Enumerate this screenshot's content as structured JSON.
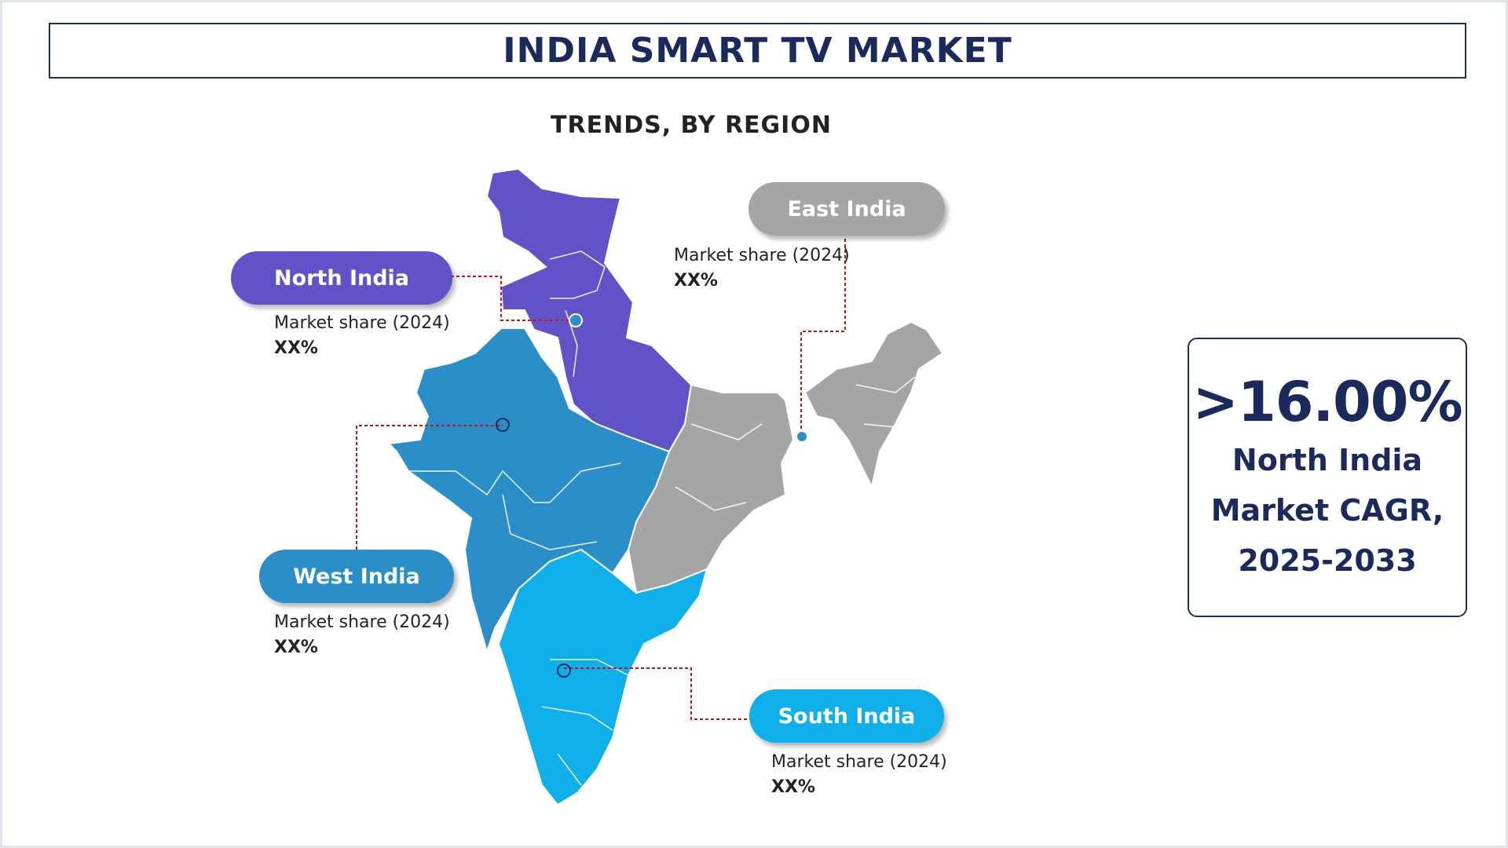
{
  "title": "INDIA SMART TV MARKET",
  "subtitle": "TRENDS, BY REGION",
  "colors": {
    "north": "#6152c8",
    "west": "#2a8fc9",
    "east": "#a5a5a5",
    "south": "#0fb0ea",
    "navy": "#1b2a5c",
    "leader": "#c0121b"
  },
  "regions": {
    "north": {
      "name": "North India",
      "share_label": "Market share (2024)",
      "share_value": "XX%"
    },
    "east": {
      "name": "East India",
      "share_label": "Market share (2024)",
      "share_value": "XX%"
    },
    "west": {
      "name": "West India",
      "share_label": "Market share (2024)",
      "share_value": "XX%"
    },
    "south": {
      "name": "South India",
      "share_label": "Market share (2024)",
      "share_value": "XX%"
    }
  },
  "cagr": {
    "value": ">16.00%",
    "label": "North India Market CAGR, 2025-2033"
  }
}
